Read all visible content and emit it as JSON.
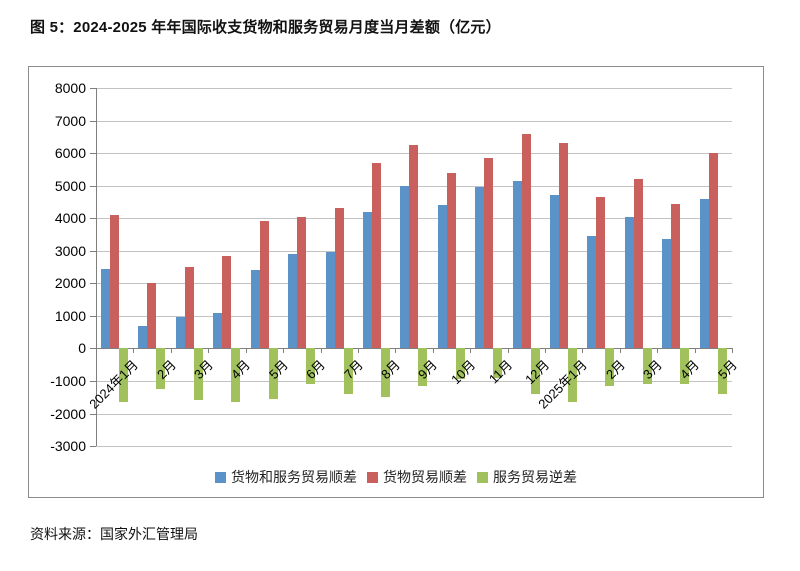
{
  "title": "图 5：2024-2025 年年国际收支货物和服务贸易月度当月差额（亿元）",
  "source": "资料来源：国家外汇管理局",
  "colors": {
    "goods_services_blue": "#5b92c8",
    "goods_red": "#c9605e",
    "services_green": "#a0c15c",
    "gridline": "#c3c3c3",
    "axis": "#7f7f7f"
  },
  "legend": {
    "items": [
      {
        "label": "货物和服务贸易顺差",
        "color": "#5b92c8"
      },
      {
        "label": "货物贸易顺差",
        "color": "#c9605e"
      },
      {
        "label": "服务贸易逆差",
        "color": "#a0c15c"
      }
    ]
  },
  "chart_data": {
    "type": "bar",
    "title": "图 5：2024-2025 年年国际收支货物和服务贸易月度当月差额（亿元）",
    "categories": [
      "2024年1月",
      "2月",
      "3月",
      "4月",
      "5月",
      "6月",
      "7月",
      "8月",
      "9月",
      "10月",
      "11月",
      "12月",
      "2025年1月",
      "2月",
      "3月",
      "4月",
      "5月"
    ],
    "series": [
      {
        "name": "货物和服务贸易顺差",
        "color": "#5b92c8",
        "values": [
          2450,
          700,
          950,
          1100,
          2400,
          2900,
          2950,
          4200,
          5000,
          4400,
          4950,
          5150,
          4700,
          3450,
          4050,
          3350,
          4600
        ]
      },
      {
        "name": "货物贸易顺差",
        "color": "#c9605e",
        "values": [
          4100,
          2000,
          2500,
          2850,
          3900,
          4050,
          4300,
          5700,
          6250,
          5400,
          5850,
          6600,
          6300,
          4650,
          5200,
          4450,
          6000
        ]
      },
      {
        "name": "服务贸易逆差",
        "color": "#a0c15c",
        "values": [
          -1650,
          -1250,
          -1600,
          -1650,
          -1550,
          -1100,
          -1400,
          -1500,
          -1150,
          -950,
          -900,
          -1400,
          -1650,
          -1150,
          -1100,
          -1100,
          -1400
        ]
      }
    ],
    "xlabel": "",
    "ylabel": "",
    "ylim": [
      -3000,
      8000
    ],
    "ytick_step": 1000,
    "grid": true,
    "legend_position": "bottom"
  }
}
